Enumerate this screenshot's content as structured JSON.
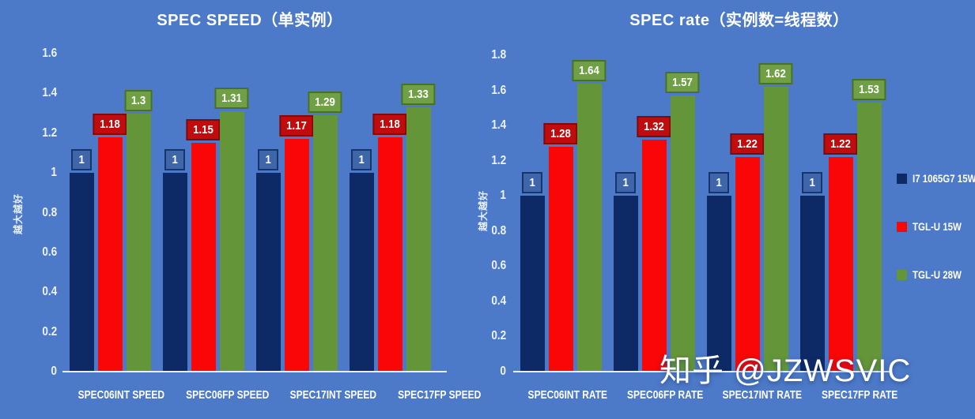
{
  "watermark": "知乎 @JZWSVIC",
  "colors": {
    "background": "#4C7AC8",
    "axis_line": "#E9EEF6",
    "tick_text": "#EDF3FC",
    "title_text": "#FFFFFF",
    "series": {
      "navy": {
        "bar": "#0D2A66",
        "label_bg": "#3E66A8",
        "label_border": "#16346E"
      },
      "red": {
        "bar": "#F90606",
        "label_bg": "#C00C0C",
        "label_border": "#7E0B0B"
      },
      "green": {
        "bar": "#649539",
        "label_bg": "#6FA046",
        "label_border": "#49702A"
      }
    }
  },
  "legend": {
    "position": "right",
    "items": [
      {
        "label": "I7 1065G7 15W",
        "series": "navy"
      },
      {
        "label": "TGL-U 15W",
        "series": "red"
      },
      {
        "label": "TGL-U 28W",
        "series": "green"
      }
    ]
  },
  "chart_data": [
    {
      "type": "bar",
      "title": "SPEC SPEED（单实例）",
      "xlabel": "",
      "ylabel": "越大越好",
      "ylim": [
        0,
        1.6
      ],
      "ytick_step": 0.2,
      "grid": false,
      "categories": [
        "SPEC06INT SPEED",
        "SPEC06FP SPEED",
        "SPEC17INT SPEED",
        "SPEC17FP SPEED"
      ],
      "series": [
        {
          "name": "I7 1065G7 15W",
          "series": "navy",
          "values": [
            1,
            1,
            1,
            1
          ]
        },
        {
          "name": "TGL-U 15W",
          "series": "red",
          "values": [
            1.18,
            1.15,
            1.17,
            1.18
          ]
        },
        {
          "name": "TGL-U 28W",
          "series": "green",
          "values": [
            1.3,
            1.31,
            1.29,
            1.33
          ]
        }
      ]
    },
    {
      "type": "bar",
      "title": "SPEC rate（实例数=线程数）",
      "xlabel": "",
      "ylabel": "越大越好",
      "ylim": [
        0,
        1.8
      ],
      "ytick_step": 0.2,
      "grid": false,
      "categories": [
        "SPEC06INT RATE",
        "SPEC06FP RATE",
        "SPEC17INT RATE",
        "SPEC17FP RATE"
      ],
      "series": [
        {
          "name": "I7 1065G7 15W",
          "series": "navy",
          "values": [
            1,
            1,
            1,
            1
          ]
        },
        {
          "name": "TGL-U 15W",
          "series": "red",
          "values": [
            1.28,
            1.32,
            1.22,
            1.22
          ]
        },
        {
          "name": "TGL-U 28W",
          "series": "green",
          "values": [
            1.64,
            1.57,
            1.62,
            1.53
          ]
        }
      ]
    }
  ]
}
